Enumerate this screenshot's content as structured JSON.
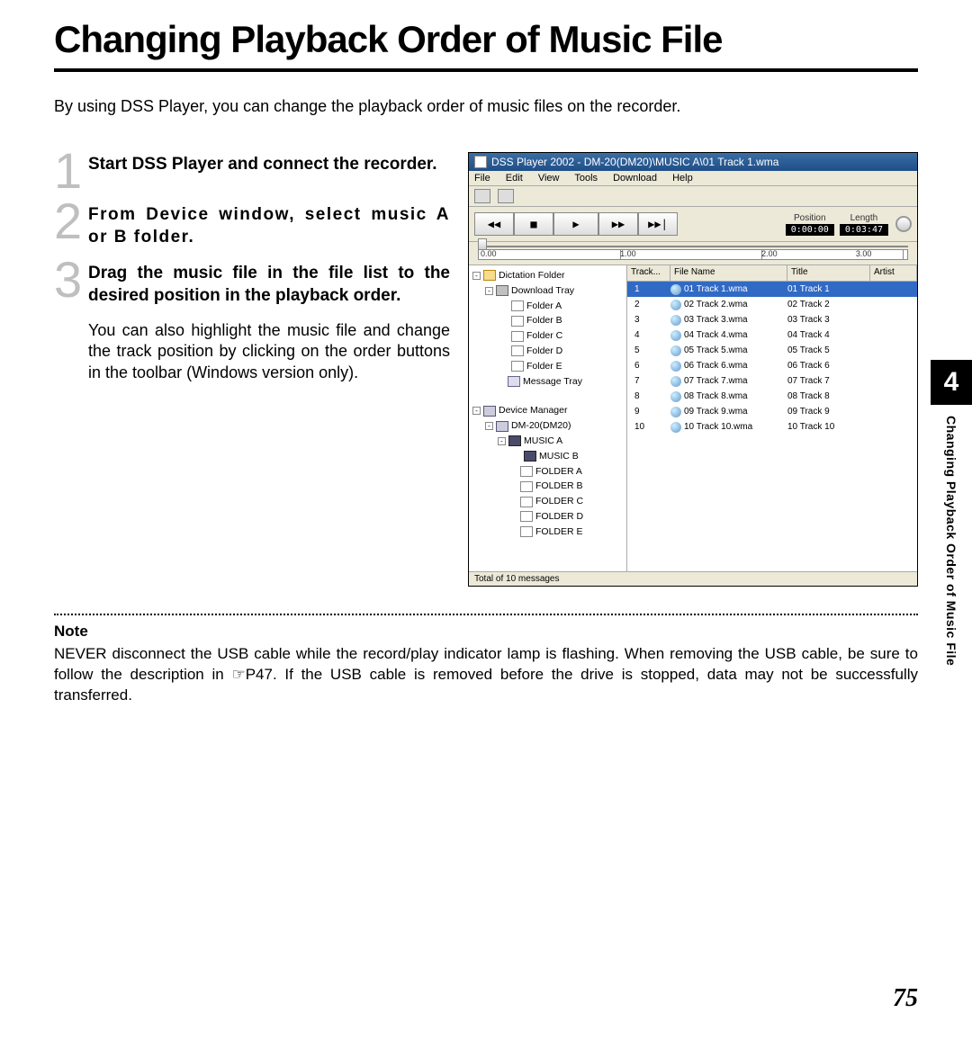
{
  "page": {
    "title": "Changing Playback Order of Music File",
    "intro": "By using DSS Player, you can change the playback order of music files on the recorder.",
    "step1": "Start DSS Player and connect the recorder.",
    "step2": "From Device window, select music A or B folder.",
    "step3": "Drag the music file in the file list to the desired position in the playback order.",
    "step3_body": "You can also highlight the music file and change the track position by clicking on the order buttons in the toolbar (Windows version only).",
    "note_head": "Note",
    "note_body": "NEVER disconnect the USB cable while the record/play indicator lamp is flashing. When removing the USB cable, be sure to follow the description in ☞P47. If the USB cable is removed before the drive is stopped, data may not be successfully transferred.",
    "pagenum": "75",
    "tab_num": "4",
    "tab_text": "Changing Playback Order of Music File"
  },
  "shot": {
    "titlebar": "DSS Player 2002 - DM-20(DM20)\\MUSIC A\\01 Track 1.wma",
    "menus": [
      "File",
      "Edit",
      "View",
      "Tools",
      "Download",
      "Help"
    ],
    "position_lbl": "Position",
    "position_val": "0:00:00",
    "length_lbl": "Length",
    "length_val": "0:03:47",
    "ruler_ticks": [
      "0.00",
      "1.00",
      "2.00",
      "3.00"
    ],
    "tree": {
      "dictation": "Dictation Folder",
      "download_tray": "Download Tray",
      "folders": [
        "Folder A",
        "Folder B",
        "Folder C",
        "Folder D",
        "Folder E"
      ],
      "message_tray": "Message Tray",
      "device_mgr": "Device Manager",
      "device": "DM-20(DM20)",
      "music_a": "MUSIC A",
      "music_b": "MUSIC B",
      "dev_folders": [
        "FOLDER A",
        "FOLDER B",
        "FOLDER C",
        "FOLDER D",
        "FOLDER E"
      ]
    },
    "columns": {
      "track": "Track...",
      "filename": "File Name",
      "title": "Title",
      "artist": "Artist"
    },
    "files": [
      {
        "n": "1",
        "fn": "01 Track 1.wma",
        "ti": "01 Track 1",
        "sel": true
      },
      {
        "n": "2",
        "fn": "02 Track 2.wma",
        "ti": "02 Track 2"
      },
      {
        "n": "3",
        "fn": "03 Track 3.wma",
        "ti": "03 Track 3"
      },
      {
        "n": "4",
        "fn": "04 Track 4.wma",
        "ti": "04 Track 4"
      },
      {
        "n": "5",
        "fn": "05 Track 5.wma",
        "ti": "05 Track 5"
      },
      {
        "n": "6",
        "fn": "06 Track 6.wma",
        "ti": "06 Track 6"
      },
      {
        "n": "7",
        "fn": "07 Track 7.wma",
        "ti": "07 Track 7"
      },
      {
        "n": "8",
        "fn": "08 Track 8.wma",
        "ti": "08 Track 8"
      },
      {
        "n": "9",
        "fn": "09 Track 9.wma",
        "ti": "09 Track 9"
      },
      {
        "n": "10",
        "fn": "10 Track 10.wma",
        "ti": "10 Track 10"
      }
    ],
    "status": "Total of 10 messages"
  }
}
